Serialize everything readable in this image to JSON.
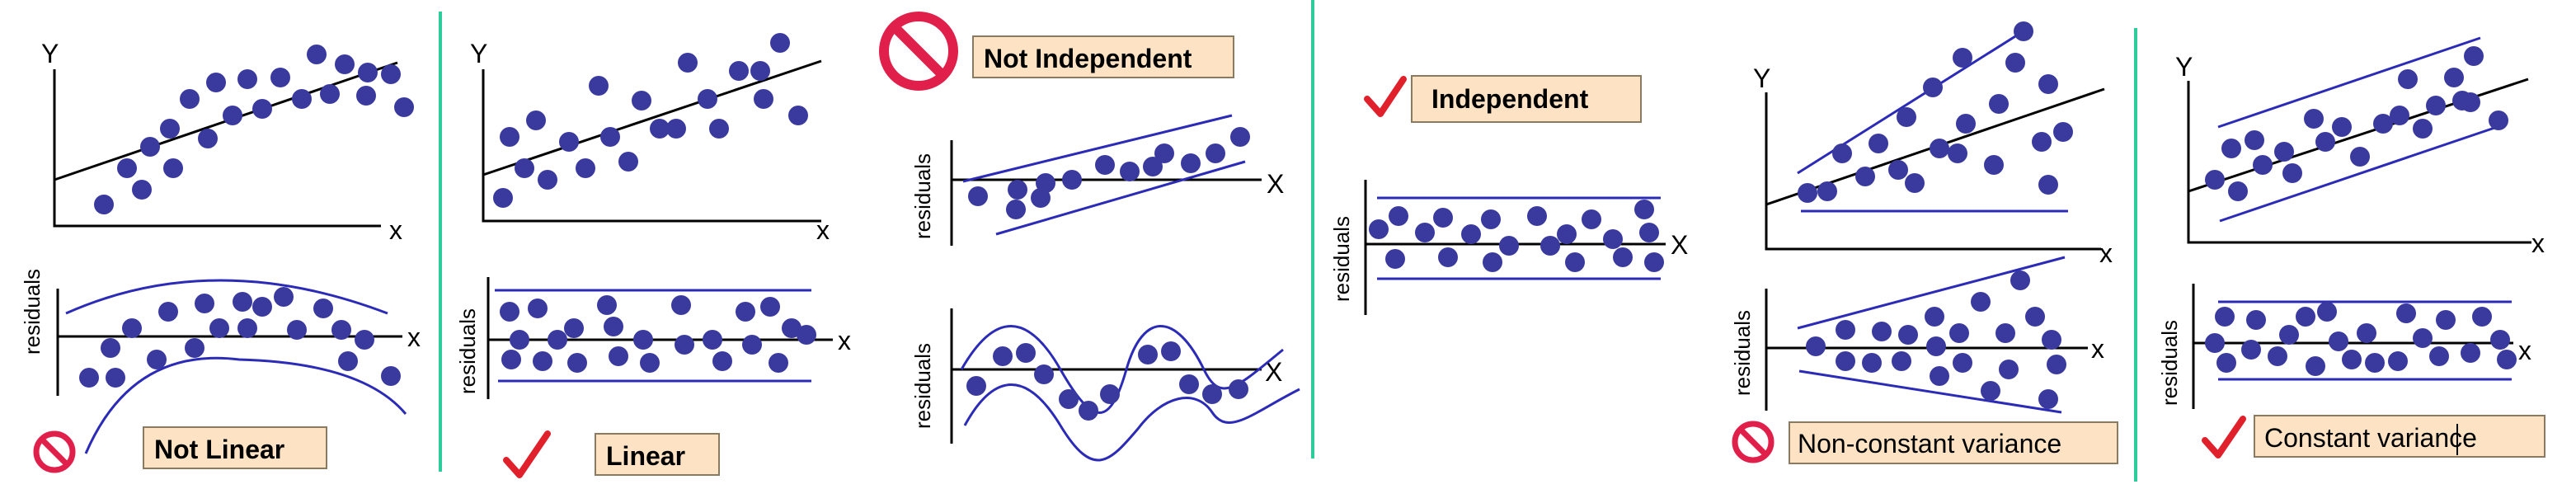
{
  "colors": {
    "dot": "#3a3a9e",
    "band": "#2b2bb8",
    "divider": "#2ecc9a",
    "label_box": "#fde3c4",
    "label_border": "#8a7a60",
    "check": "#e0202a",
    "no_sign": "#e0204a"
  },
  "icons": {
    "no": "no-entry-icon",
    "check": "checkmark-icon"
  },
  "axis": {
    "y": "Y",
    "x_lower": "x",
    "x_upper": "X",
    "residuals": "residuals"
  },
  "panels": [
    {
      "id": "not-linear",
      "caption": "Not Linear",
      "verdict": "bad"
    },
    {
      "id": "linear",
      "caption": "Linear",
      "verdict": "good"
    },
    {
      "id": "not-independent",
      "caption": "Not Independent",
      "verdict": "bad"
    },
    {
      "id": "independent",
      "caption": "Independent",
      "verdict": "good"
    },
    {
      "id": "non-constant-variance",
      "caption": "Non-constant variance",
      "verdict": "bad"
    },
    {
      "id": "constant-variance",
      "caption": "Constant variance",
      "verdict": "good"
    }
  ]
}
